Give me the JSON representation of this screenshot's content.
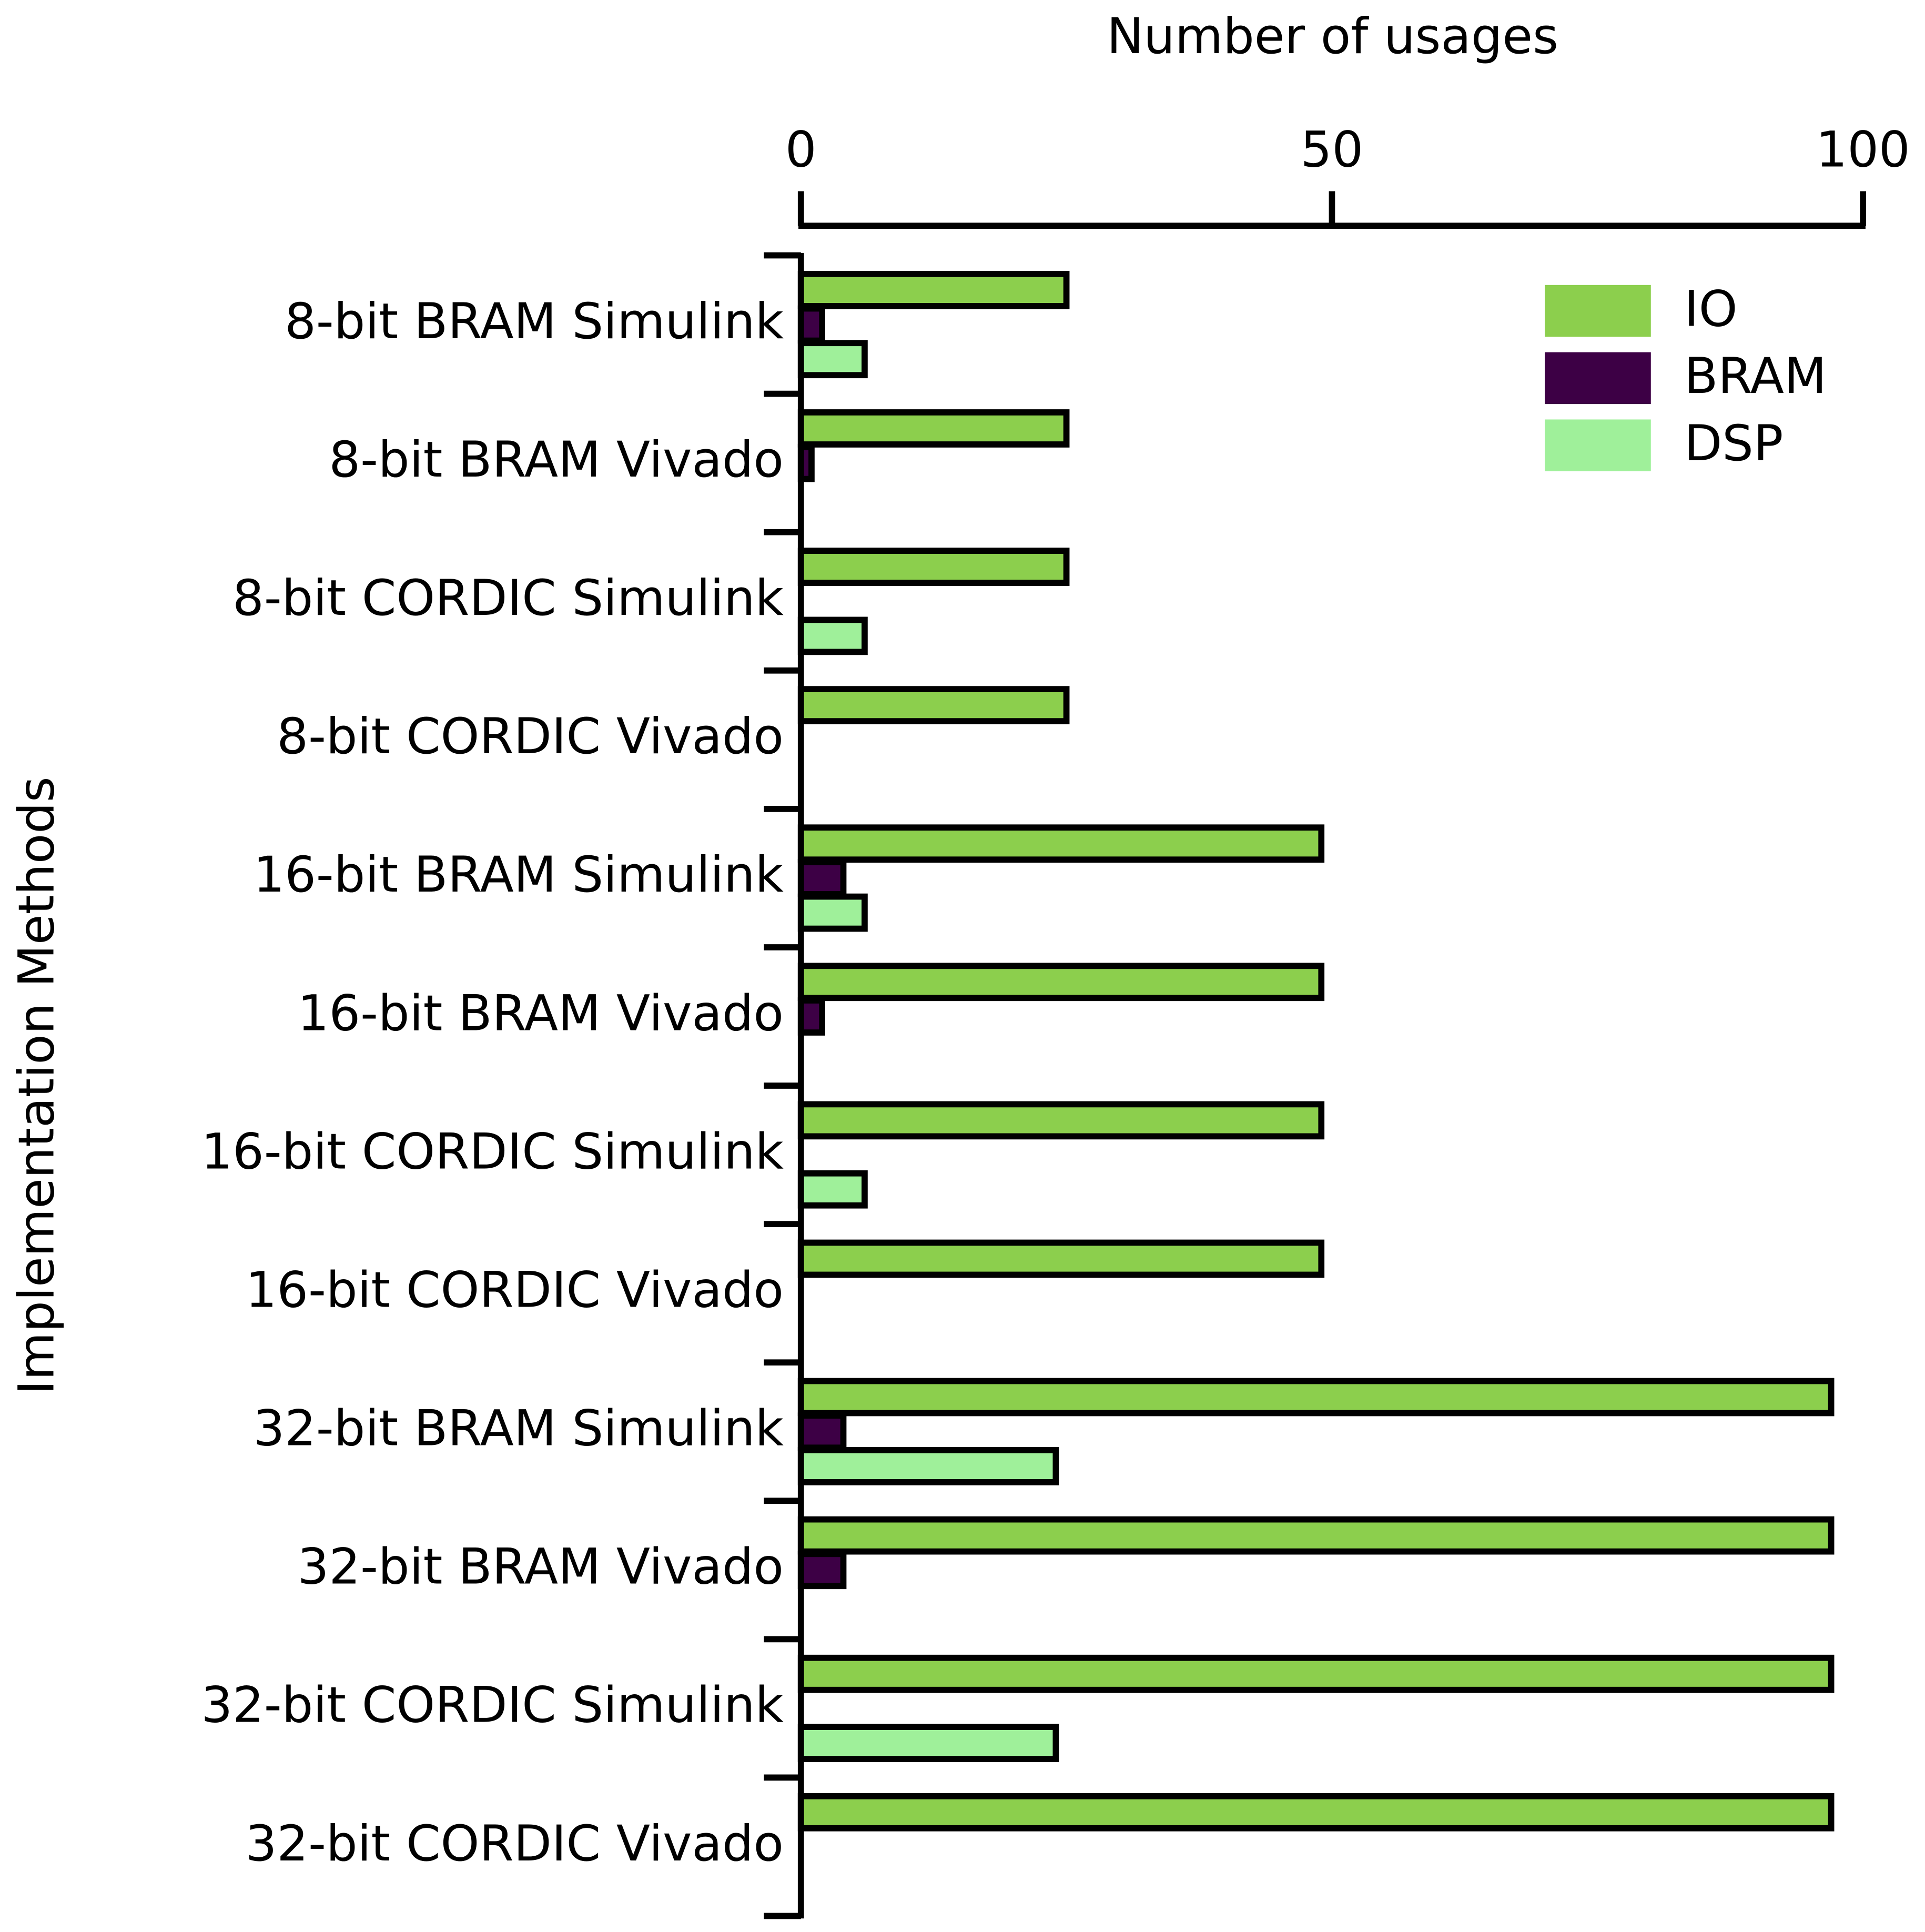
{
  "chart_data": {
    "type": "barh",
    "x_label": "Number of usages",
    "y_label": "Implementation Methods",
    "categories": [
      "8-bit BRAM Simulink",
      "8-bit BRAM Vivado",
      "8-bit CORDIC Simulink",
      "8-bit CORDIC Vivado",
      "16-bit BRAM Simulink",
      "16-bit BRAM Vivado",
      "16-bit CORDIC Simulink",
      "16-bit CORDIC Vivado",
      "32-bit BRAM Simulink",
      "32-bit BRAM Vivado",
      "32-bit CORDIC Simulink",
      "32-bit CORDIC Vivado"
    ],
    "series": [
      {
        "name": "IO",
        "color": "#8ccf4d",
        "values": [
          25,
          25,
          25,
          25,
          49,
          49,
          49,
          49,
          97,
          97,
          97,
          97
        ]
      },
      {
        "name": "BRAM",
        "color": "#3d0045",
        "values": [
          2,
          1,
          0,
          0,
          4,
          2,
          0,
          0,
          4,
          4,
          0,
          0
        ]
      },
      {
        "name": "DSP",
        "color": "#9ff09a",
        "values": [
          6,
          0,
          6,
          0,
          6,
          0,
          6,
          0,
          24,
          0,
          24,
          0
        ]
      }
    ],
    "xlim": [
      0,
      100
    ],
    "xticks": [
      0,
      50,
      100
    ],
    "legend": "upper right"
  }
}
